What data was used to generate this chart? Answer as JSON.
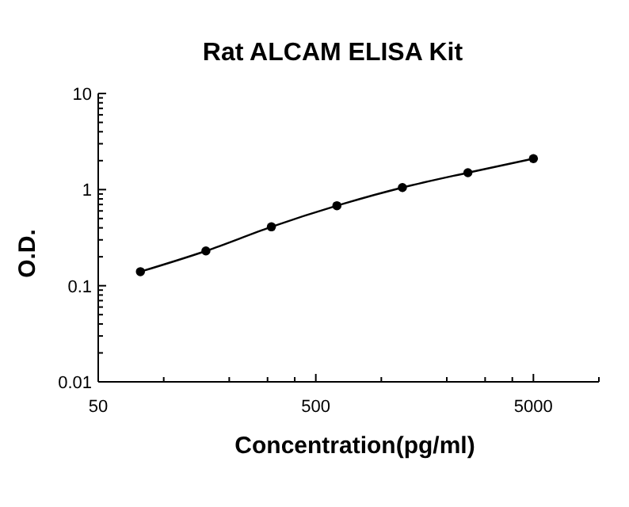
{
  "chart_data": {
    "type": "line",
    "title": "Rat ALCAM ELISA Kit",
    "xlabel": "Concentration(pg/ml)",
    "ylabel": "O.D.",
    "log": "xy",
    "marker": "circle",
    "line_style": "solid",
    "grid": false,
    "x": [
      78.125,
      156.25,
      312.5,
      625,
      1250,
      2500,
      5000
    ],
    "series": [
      {
        "color": "#000000",
        "values": [
          0.14,
          0.23,
          0.41,
          0.68,
          1.05,
          1.5,
          2.1
        ]
      }
    ],
    "xlim": [
      50,
      10000
    ],
    "xticks": [
      50,
      {
        "value": 100,
        "label": null
      },
      {
        "value": 200,
        "label": null
      },
      {
        "value": 300,
        "label": null
      },
      {
        "value": 400,
        "label": null
      },
      500,
      {
        "value": 1000,
        "label": null
      },
      {
        "value": 2000,
        "label": null
      },
      {
        "value": 3000,
        "label": null
      },
      {
        "value": 4000,
        "label": null
      },
      5000,
      {
        "value": 10000,
        "label": null
      }
    ],
    "ylim": [
      0.01,
      10
    ],
    "yticks": [
      0.01,
      {
        "value": 0.02,
        "label": null
      },
      {
        "value": 0.03,
        "label": null
      },
      {
        "value": 0.04,
        "label": null
      },
      {
        "value": 0.05,
        "label": null
      },
      {
        "value": 0.06,
        "label": null
      },
      {
        "value": 0.07,
        "label": null
      },
      {
        "value": 0.08,
        "label": null
      },
      {
        "value": 0.09,
        "label": null
      },
      0.1,
      {
        "value": 0.2,
        "label": null
      },
      {
        "value": 0.3,
        "label": null
      },
      {
        "value": 0.4,
        "label": null
      },
      {
        "value": 0.5,
        "label": null
      },
      {
        "value": 0.6,
        "label": null
      },
      {
        "value": 0.7,
        "label": null
      },
      {
        "value": 0.8,
        "label": null
      },
      {
        "value": 0.9,
        "label": null
      },
      1,
      {
        "value": 2,
        "label": null
      },
      {
        "value": 3,
        "label": null
      },
      {
        "value": 4,
        "label": null
      },
      {
        "value": 5,
        "label": null
      },
      {
        "value": 6,
        "label": null
      },
      {
        "value": 7,
        "label": null
      },
      {
        "value": 8,
        "label": null
      },
      {
        "value": 9,
        "label": null
      },
      10
    ]
  }
}
